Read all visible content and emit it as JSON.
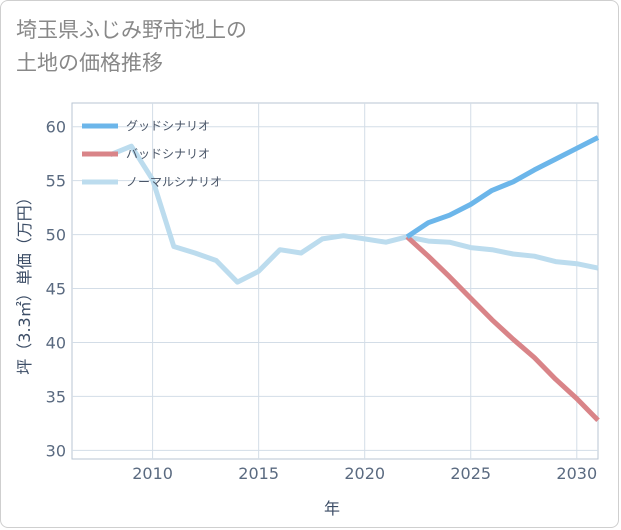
{
  "title_lines": [
    "埼玉県ふじみ野市池上の",
    "土地の価格推移"
  ],
  "chart_data": {
    "type": "line",
    "xlabel": "年",
    "ylabel": "坪（3.3㎡）単価（万円）",
    "xlim": [
      2006.2,
      2031
    ],
    "ylim": [
      29.2,
      62.2
    ],
    "xticks": [
      2010,
      2015,
      2020,
      2025,
      2030
    ],
    "yticks": [
      30,
      35,
      40,
      45,
      50,
      55,
      60
    ],
    "grid": true,
    "legend_position": "top-left",
    "series": [
      {
        "name": "グッドシナリオ",
        "color": "#6cb6ea",
        "x": [
          2022,
          2023,
          2024,
          2025,
          2026,
          2027,
          2028,
          2029,
          2030,
          2031
        ],
        "y": [
          49.8,
          51.1,
          51.8,
          52.8,
          54.1,
          54.9,
          56.0,
          57.0,
          58.0,
          59.0
        ]
      },
      {
        "name": "バッドシナリオ",
        "color": "#d98488",
        "x": [
          2022,
          2023,
          2024,
          2025,
          2026,
          2027,
          2028,
          2029,
          2030,
          2031
        ],
        "y": [
          49.8,
          48.0,
          46.1,
          44.1,
          42.1,
          40.3,
          38.6,
          36.6,
          34.8,
          32.8
        ]
      },
      {
        "name": "ノーマルシナリオ",
        "color": "#bcdcee",
        "x": [
          2008,
          2009,
          2010,
          2011,
          2012,
          2013,
          2014,
          2015,
          2016,
          2017,
          2018,
          2019,
          2020,
          2021,
          2022,
          2023,
          2024,
          2025,
          2026,
          2027,
          2028,
          2029,
          2030,
          2031
        ],
        "y": [
          57.4,
          58.2,
          55.1,
          48.9,
          48.3,
          47.6,
          45.6,
          46.6,
          48.6,
          48.3,
          49.6,
          49.9,
          49.6,
          49.3,
          49.8,
          49.4,
          49.3,
          48.8,
          48.6,
          48.2,
          48.0,
          47.5,
          47.3,
          46.9
        ]
      }
    ]
  }
}
